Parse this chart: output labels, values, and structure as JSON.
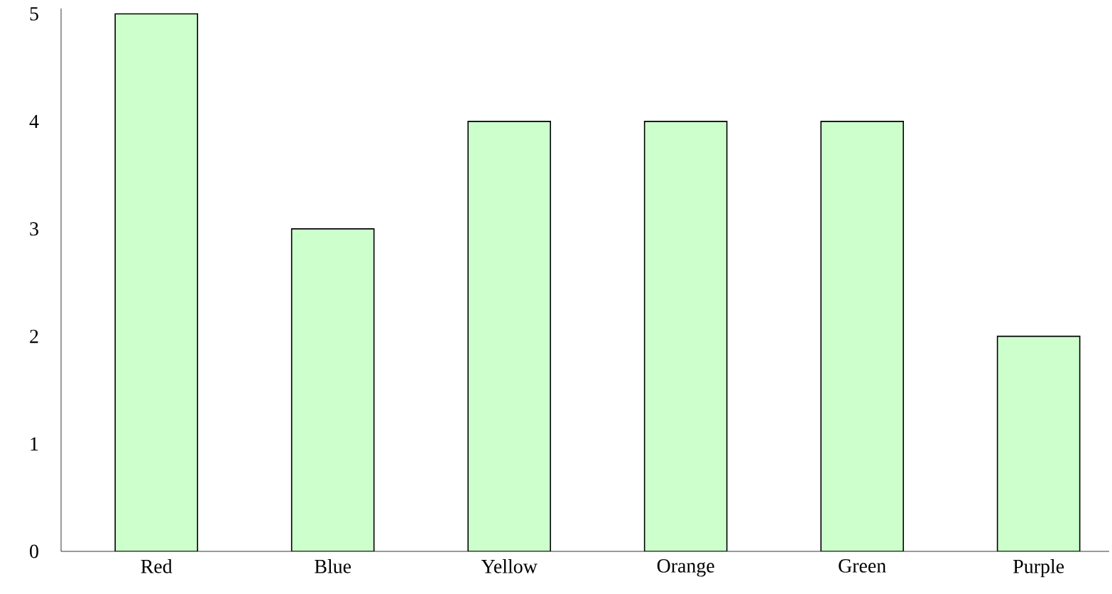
{
  "chart_data": {
    "type": "bar",
    "categories": [
      "Red",
      "Blue",
      "Yellow",
      "Orange",
      "Green",
      "Purple"
    ],
    "values": [
      5,
      3,
      4,
      4,
      4,
      2
    ],
    "color": "#ccffcc",
    "ylim": [
      0,
      5.05
    ],
    "yticks": [
      0,
      1,
      2,
      3,
      4,
      5
    ],
    "grid": false
  }
}
